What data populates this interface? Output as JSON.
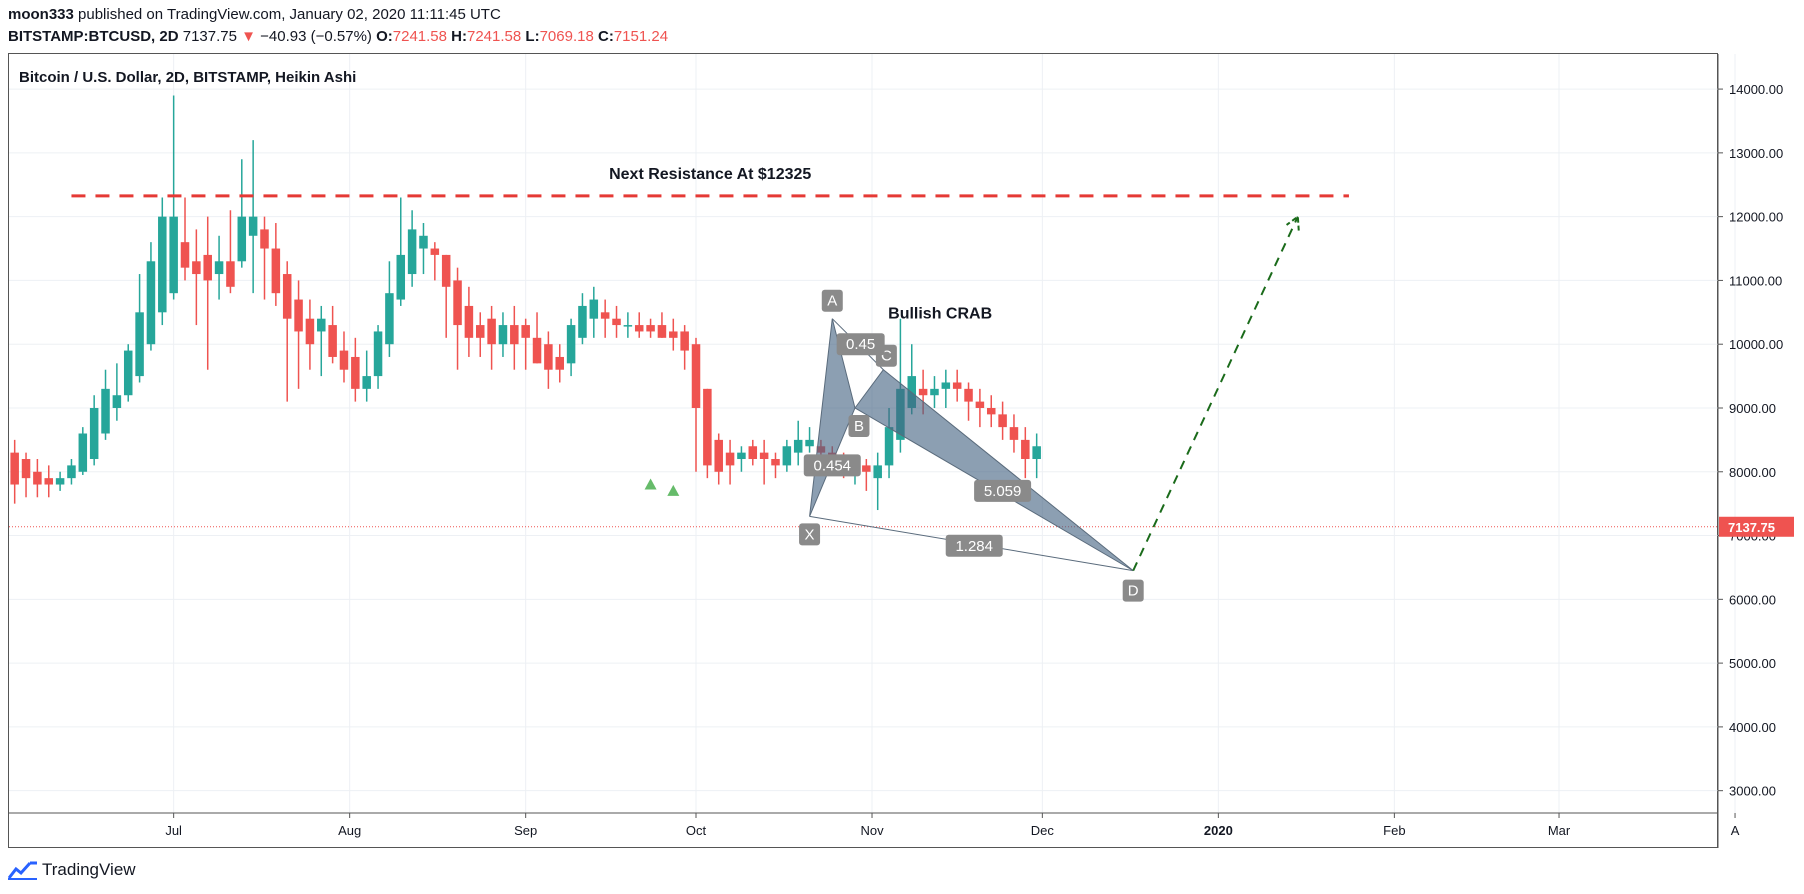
{
  "header": {
    "user": "moon333",
    "published_text": "published on TradingView.com, January 02, 2020 11:11:45 UTC",
    "symbol": "BITSTAMP:BTCUSD, 2D",
    "last": "7137.75",
    "change_arrow": "▼",
    "change": "−40.93 (−0.57%)",
    "open_label": "O:",
    "open": "7241.58",
    "high_label": "H:",
    "high": "7241.58",
    "low_label": "L:",
    "low": "7069.18",
    "close_label": "C:",
    "close": "7151.24"
  },
  "footer": {
    "brand": "TradingView"
  },
  "chart_data": {
    "type": "candlestick",
    "title": "Bitcoin / U.S. Dollar, 2D, BITSTAMP, Heikin Ashi",
    "price_axis": {
      "ticks": [
        "14000.00",
        "13000.00",
        "12000.00",
        "11000.00",
        "10000.00",
        "9000.00",
        "8000.00",
        "7000.00",
        "6000.00",
        "5000.00",
        "4000.00",
        "3000.00"
      ],
      "ylim": [
        2650,
        14550
      ]
    },
    "time_axis": {
      "ticks": [
        {
          "label": "Jul",
          "t": 0
        },
        {
          "label": "Aug",
          "t": 31
        },
        {
          "label": "Sep",
          "t": 62
        },
        {
          "label": "Oct",
          "t": 92
        },
        {
          "label": "Nov",
          "t": 123
        },
        {
          "label": "Dec",
          "t": 153
        },
        {
          "label": "2020",
          "t": 184,
          "bold": true
        },
        {
          "label": "Feb",
          "t": 215
        },
        {
          "label": "Mar",
          "t": 244
        },
        {
          "label": "A",
          "t": 275
        }
      ],
      "xlim": [
        -29,
        272
      ]
    },
    "last_price": {
      "label": "7137.75",
      "value": 7137.75
    },
    "resistance": {
      "label": "Next Resistance At $12325",
      "value": 12325,
      "t_start": -18,
      "t_end": 207
    },
    "pattern": {
      "name": "Bullish CRAB",
      "points": [
        {
          "label": "X",
          "t": 112,
          "price": 7300
        },
        {
          "label": "A",
          "t": 116,
          "price": 10400
        },
        {
          "label": "B",
          "t": 120,
          "price": 9000
        },
        {
          "label": "C",
          "t": 125,
          "price": 9600
        },
        {
          "label": "D",
          "t": 169,
          "price": 6450
        }
      ],
      "ratios": [
        {
          "label": "0.454",
          "t": 116,
          "price": 8100
        },
        {
          "label": "0.45",
          "t": 121,
          "price": 10000
        },
        {
          "label": "5.059",
          "t": 146,
          "price": 7700
        },
        {
          "label": "1.284",
          "t": 141,
          "price": 6840
        }
      ]
    },
    "projection": {
      "from_t": 169,
      "from_price": 6450,
      "to_t": 198,
      "to_price": 12000
    },
    "signals": [
      {
        "t": 84,
        "price": 7800
      },
      {
        "t": 88,
        "price": 7700
      }
    ],
    "candles": [
      {
        "t": -28,
        "o": 8300,
        "h": 8500,
        "l": 7500,
        "c": 7800
      },
      {
        "t": -26,
        "o": 8200,
        "h": 8300,
        "l": 7600,
        "c": 7900
      },
      {
        "t": -24,
        "o": 8000,
        "h": 8200,
        "l": 7600,
        "c": 7800
      },
      {
        "t": -22,
        "o": 7900,
        "h": 8100,
        "l": 7600,
        "c": 7800
      },
      {
        "t": -20,
        "o": 7800,
        "h": 8000,
        "l": 7700,
        "c": 7900
      },
      {
        "t": -18,
        "o": 7900,
        "h": 8200,
        "l": 7800,
        "c": 8100
      },
      {
        "t": -16,
        "o": 8000,
        "h": 8700,
        "l": 7950,
        "c": 8600
      },
      {
        "t": -14,
        "o": 8200,
        "h": 9200,
        "l": 8100,
        "c": 9000
      },
      {
        "t": -12,
        "o": 8600,
        "h": 9600,
        "l": 8500,
        "c": 9300
      },
      {
        "t": -10,
        "o": 9000,
        "h": 9700,
        "l": 8800,
        "c": 9200
      },
      {
        "t": -8,
        "o": 9200,
        "h": 10000,
        "l": 9100,
        "c": 9900
      },
      {
        "t": -6,
        "o": 9500,
        "h": 11100,
        "l": 9400,
        "c": 10500
      },
      {
        "t": -4,
        "o": 10000,
        "h": 11600,
        "l": 9900,
        "c": 11300
      },
      {
        "t": -2,
        "o": 10500,
        "h": 12300,
        "l": 10300,
        "c": 12000
      },
      {
        "t": 0,
        "o": 10800,
        "h": 13900,
        "l": 10700,
        "c": 12000
      },
      {
        "t": 2,
        "o": 11600,
        "h": 12300,
        "l": 11000,
        "c": 11200
      },
      {
        "t": 4,
        "o": 11300,
        "h": 11800,
        "l": 10300,
        "c": 11100
      },
      {
        "t": 6,
        "o": 11400,
        "h": 12000,
        "l": 9600,
        "c": 11000
      },
      {
        "t": 8,
        "o": 11100,
        "h": 11700,
        "l": 10700,
        "c": 11300
      },
      {
        "t": 10,
        "o": 11300,
        "h": 12100,
        "l": 10800,
        "c": 10900
      },
      {
        "t": 12,
        "o": 11300,
        "h": 12900,
        "l": 11200,
        "c": 12000
      },
      {
        "t": 14,
        "o": 11700,
        "h": 13200,
        "l": 10800,
        "c": 12000
      },
      {
        "t": 16,
        "o": 11800,
        "h": 12000,
        "l": 10700,
        "c": 11500
      },
      {
        "t": 18,
        "o": 11500,
        "h": 11900,
        "l": 10600,
        "c": 10800
      },
      {
        "t": 20,
        "o": 11100,
        "h": 11300,
        "l": 9100,
        "c": 10400
      },
      {
        "t": 22,
        "o": 10700,
        "h": 11000,
        "l": 9300,
        "c": 10200
      },
      {
        "t": 24,
        "o": 10400,
        "h": 10700,
        "l": 9600,
        "c": 10000
      },
      {
        "t": 26,
        "o": 10200,
        "h": 10600,
        "l": 9500,
        "c": 10400
      },
      {
        "t": 28,
        "o": 10300,
        "h": 10600,
        "l": 9700,
        "c": 9800
      },
      {
        "t": 30,
        "o": 9900,
        "h": 10200,
        "l": 9400,
        "c": 9600
      },
      {
        "t": 32,
        "o": 9800,
        "h": 10100,
        "l": 9100,
        "c": 9300
      },
      {
        "t": 34,
        "o": 9300,
        "h": 9900,
        "l": 9100,
        "c": 9500
      },
      {
        "t": 36,
        "o": 9500,
        "h": 10300,
        "l": 9300,
        "c": 10200
      },
      {
        "t": 38,
        "o": 10000,
        "h": 11300,
        "l": 9800,
        "c": 10800
      },
      {
        "t": 40,
        "o": 10700,
        "h": 12300,
        "l": 10600,
        "c": 11400
      },
      {
        "t": 42,
        "o": 11100,
        "h": 12100,
        "l": 10900,
        "c": 11800
      },
      {
        "t": 44,
        "o": 11500,
        "h": 11900,
        "l": 11100,
        "c": 11700
      },
      {
        "t": 46,
        "o": 11500,
        "h": 11600,
        "l": 11000,
        "c": 11400
      },
      {
        "t": 48,
        "o": 11400,
        "h": 11400,
        "l": 10100,
        "c": 10900
      },
      {
        "t": 50,
        "o": 11000,
        "h": 11200,
        "l": 9600,
        "c": 10300
      },
      {
        "t": 52,
        "o": 10600,
        "h": 10900,
        "l": 9800,
        "c": 10100
      },
      {
        "t": 54,
        "o": 10300,
        "h": 10500,
        "l": 9800,
        "c": 10100
      },
      {
        "t": 56,
        "o": 10400,
        "h": 10600,
        "l": 9600,
        "c": 10000
      },
      {
        "t": 58,
        "o": 10000,
        "h": 10500,
        "l": 9800,
        "c": 10300
      },
      {
        "t": 60,
        "o": 10300,
        "h": 10600,
        "l": 9600,
        "c": 10000
      },
      {
        "t": 62,
        "o": 10300,
        "h": 10400,
        "l": 9600,
        "c": 10100
      },
      {
        "t": 64,
        "o": 10100,
        "h": 10500,
        "l": 9700,
        "c": 9700
      },
      {
        "t": 66,
        "o": 10000,
        "h": 10200,
        "l": 9300,
        "c": 9600
      },
      {
        "t": 68,
        "o": 9800,
        "h": 10000,
        "l": 9400,
        "c": 9600
      },
      {
        "t": 70,
        "o": 9700,
        "h": 10400,
        "l": 9500,
        "c": 10300
      },
      {
        "t": 72,
        "o": 10100,
        "h": 10800,
        "l": 10000,
        "c": 10600
      },
      {
        "t": 74,
        "o": 10400,
        "h": 10900,
        "l": 10100,
        "c": 10700
      },
      {
        "t": 76,
        "o": 10500,
        "h": 10700,
        "l": 10100,
        "c": 10400
      },
      {
        "t": 78,
        "o": 10400,
        "h": 10600,
        "l": 10100,
        "c": 10300
      },
      {
        "t": 80,
        "o": 10300,
        "h": 10500,
        "l": 10100,
        "c": 10300
      },
      {
        "t": 82,
        "o": 10300,
        "h": 10500,
        "l": 10100,
        "c": 10200
      },
      {
        "t": 84,
        "o": 10300,
        "h": 10400,
        "l": 10100,
        "c": 10200
      },
      {
        "t": 86,
        "o": 10300,
        "h": 10500,
        "l": 10100,
        "c": 10100
      },
      {
        "t": 88,
        "o": 10200,
        "h": 10400,
        "l": 9900,
        "c": 10100
      },
      {
        "t": 90,
        "o": 10200,
        "h": 10300,
        "l": 9600,
        "c": 9900
      },
      {
        "t": 92,
        "o": 10000,
        "h": 10100,
        "l": 8000,
        "c": 9000
      },
      {
        "t": 94,
        "o": 9300,
        "h": 9300,
        "l": 7900,
        "c": 8100
      },
      {
        "t": 96,
        "o": 8500,
        "h": 8600,
        "l": 7800,
        "c": 8000
      },
      {
        "t": 98,
        "o": 8300,
        "h": 8500,
        "l": 7800,
        "c": 8100
      },
      {
        "t": 100,
        "o": 8200,
        "h": 8400,
        "l": 8000,
        "c": 8300
      },
      {
        "t": 102,
        "o": 8400,
        "h": 8500,
        "l": 8100,
        "c": 8200
      },
      {
        "t": 104,
        "o": 8300,
        "h": 8500,
        "l": 7800,
        "c": 8200
      },
      {
        "t": 106,
        "o": 8200,
        "h": 8300,
        "l": 7900,
        "c": 8100
      },
      {
        "t": 108,
        "o": 8100,
        "h": 8500,
        "l": 8000,
        "c": 8400
      },
      {
        "t": 110,
        "o": 8300,
        "h": 8800,
        "l": 8100,
        "c": 8500
      },
      {
        "t": 112,
        "o": 8400,
        "h": 8700,
        "l": 8300,
        "c": 8500
      },
      {
        "t": 114,
        "o": 8400,
        "h": 8500,
        "l": 8100,
        "c": 8300
      },
      {
        "t": 116,
        "o": 8300,
        "h": 8400,
        "l": 8000,
        "c": 8200
      },
      {
        "t": 118,
        "o": 8200,
        "h": 8300,
        "l": 7900,
        "c": 8100
      },
      {
        "t": 120,
        "o": 8100,
        "h": 8200,
        "l": 7800,
        "c": 8100
      },
      {
        "t": 122,
        "o": 8100,
        "h": 8200,
        "l": 7700,
        "c": 8000
      },
      {
        "t": 124,
        "o": 7900,
        "h": 8300,
        "l": 7400,
        "c": 8100
      },
      {
        "t": 126,
        "o": 8100,
        "h": 9000,
        "l": 7900,
        "c": 8700
      },
      {
        "t": 128,
        "o": 8500,
        "h": 10400,
        "l": 8300,
        "c": 9300
      },
      {
        "t": 130,
        "o": 9000,
        "h": 10000,
        "l": 8900,
        "c": 9500
      },
      {
        "t": 132,
        "o": 9300,
        "h": 9600,
        "l": 8900,
        "c": 9200
      },
      {
        "t": 134,
        "o": 9200,
        "h": 9500,
        "l": 9000,
        "c": 9300
      },
      {
        "t": 136,
        "o": 9300,
        "h": 9600,
        "l": 9000,
        "c": 9400
      },
      {
        "t": 138,
        "o": 9400,
        "h": 9600,
        "l": 9100,
        "c": 9300
      },
      {
        "t": 140,
        "o": 9300,
        "h": 9400,
        "l": 8800,
        "c": 9100
      },
      {
        "t": 142,
        "o": 9100,
        "h": 9300,
        "l": 8700,
        "c": 9000
      },
      {
        "t": 144,
        "o": 9000,
        "h": 9200,
        "l": 8700,
        "c": 8900
      },
      {
        "t": 146,
        "o": 8900,
        "h": 9100,
        "l": 8500,
        "c": 8700
      },
      {
        "t": 148,
        "o": 8700,
        "h": 8900,
        "l": 8300,
        "c": 8500
      },
      {
        "t": 150,
        "o": 8500,
        "h": 8700,
        "l": 7900,
        "c": 8200
      },
      {
        "t": 152,
        "o": 8200,
        "h": 8600,
        "l": 7900,
        "c": 8400
      }
    ]
  }
}
